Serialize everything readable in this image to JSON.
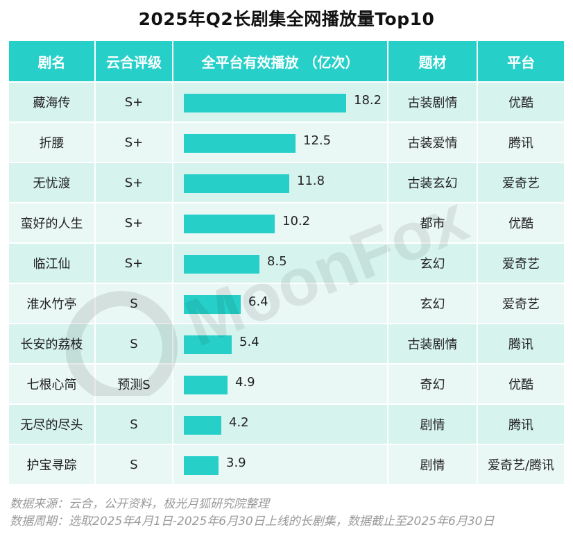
{
  "title": "2025年Q2长剧集全网播放量Top10",
  "table": {
    "headers": [
      "剧名",
      "云合评级",
      "全平台有效播放 （亿次）",
      "题材",
      "平台"
    ]
  },
  "chart_data": {
    "type": "bar",
    "title": "2025年Q2长剧集全网播放量Top10",
    "xlabel": "",
    "ylabel": "全平台有效播放 （亿次）",
    "categories": [
      "藏海传",
      "折腰",
      "无忧渡",
      "蛮好的人生",
      "临江仙",
      "淮水竹亭",
      "长安的荔枝",
      "七根心简",
      "无尽的尽头",
      "护宝寻踪"
    ],
    "values": [
      18.2,
      12.5,
      11.8,
      10.2,
      8.5,
      6.4,
      5.4,
      4.9,
      4.2,
      3.9
    ],
    "value_labels": [
      "18.2",
      "12.5",
      "11.8",
      "10.2",
      "8.5",
      "6.4",
      "5.4",
      "4.9",
      "4.2",
      "3.9"
    ],
    "bar_color": "#26d0c9",
    "header_color": "#26d0c9",
    "row_colors": [
      "#d7f3ee",
      "#e9f7f5"
    ],
    "grades": [
      "S+",
      "S+",
      "S+",
      "S+",
      "S+",
      "S",
      "S",
      "预测S",
      "S",
      "S"
    ],
    "genres": [
      "古装剧情",
      "古装爱情",
      "古装玄幻",
      "都市",
      "玄幻",
      "玄幻",
      "古装剧情",
      "奇幻",
      "剧情",
      "剧情"
    ],
    "platforms": [
      "优酷",
      "腾讯",
      "爱奇艺",
      "优酷",
      "爱奇艺",
      "爱奇艺",
      "腾讯",
      "优酷",
      "腾讯",
      "爱奇艺/腾讯"
    ],
    "ylim": [
      0,
      18.2
    ],
    "grid": false
  },
  "watermark": "MoonFox",
  "footer": {
    "source": "数据来源：云合，公开资料，极光月狐研究院整理",
    "period": "数据周期：选取2025年4月1日-2025年6月30日上线的长剧集，数据截止至2025年6月30日"
  }
}
